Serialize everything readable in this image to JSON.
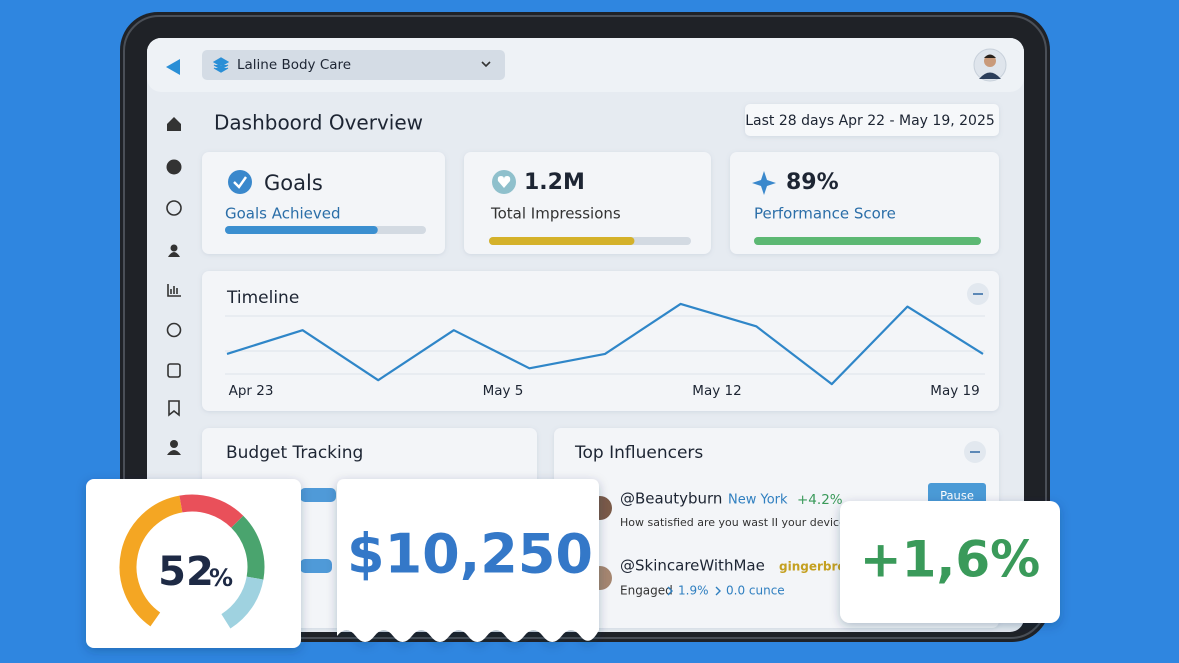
{
  "header": {
    "brand": "Laline Body Care"
  },
  "page": {
    "title": "Dashboord Overview",
    "date_range": "Last 28 days Apr 22 - May 19, 2025"
  },
  "cards": [
    {
      "title": "Goals",
      "subtitle": "Goals Achieved",
      "progress": 76,
      "color": "#3b8fd0"
    },
    {
      "title": "1.2M",
      "subtitle": "Total Impressions",
      "progress": 72,
      "color": "#d4b12a"
    },
    {
      "title": "89%",
      "subtitle": "Performance Score",
      "progress": 100,
      "color": "#5cb873"
    }
  ],
  "timeline": {
    "title": "Timeline",
    "labels": [
      "Apr 23",
      "May 5",
      "May 12",
      "May 19"
    ],
    "values": [
      29,
      47,
      9,
      47,
      18,
      29,
      67,
      50,
      6,
      65,
      29
    ],
    "ylim": [
      0,
      70
    ],
    "color": "#2f86c8"
  },
  "budget": {
    "title": "Budget Tracking"
  },
  "influencers": {
    "title": "Top Influencers",
    "button": "Pause",
    "rows": [
      {
        "handle": "@Beautyburn",
        "tag": "New York",
        "change": "+4.2%",
        "note": "How satisfied are you wast II your device?"
      },
      {
        "handle": "@SkincareWithMae",
        "tag": "gingerbread",
        "note": "Engaged",
        "rate": "1.9%",
        "extra": "0.0 cunce"
      }
    ]
  },
  "overlays": {
    "gauge_value": "52",
    "gauge_unit": "%",
    "amount": "$10,250",
    "growth": "+1,6%"
  }
}
